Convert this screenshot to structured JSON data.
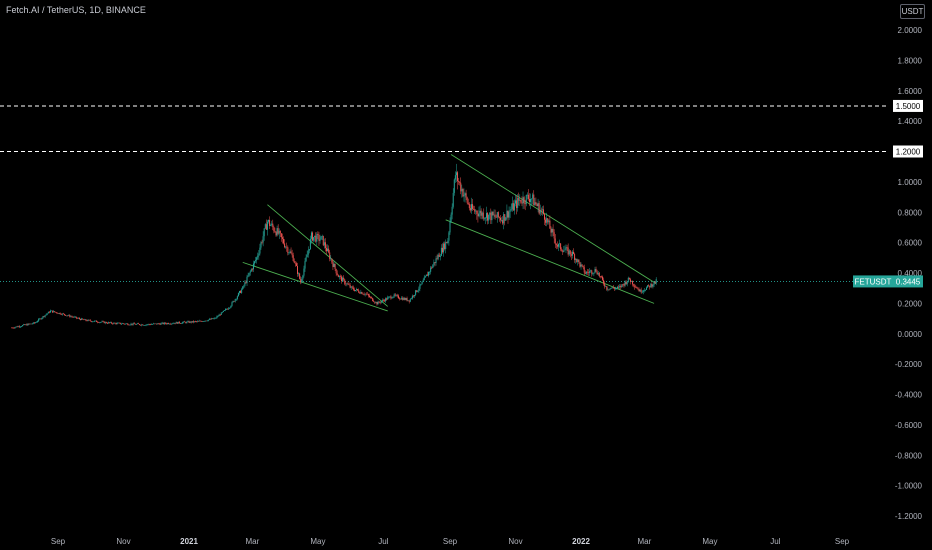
{
  "header": {
    "title": "Fetch.AI / TetherUS, 1D, BINANCE",
    "unit": "USDT"
  },
  "colors": {
    "background": "#000000",
    "up": "#26a69a",
    "down": "#ef5350",
    "trendline": "#4caf50",
    "current_price": "#26a69a",
    "text": "#b2b5be"
  },
  "chart_data": {
    "type": "candlestick",
    "symbol": "FETUSDT",
    "current_price": "0.3445",
    "y_ticks": [
      "2.0000",
      "1.8000",
      "1.6000",
      "1.4000",
      "1.2000",
      "1.0000",
      "0.8000",
      "0.6000",
      "0.4000",
      "0.2000",
      "0.0000",
      "-0.2000",
      "-0.4000",
      "-0.6000",
      "-0.8000",
      "-1.0000",
      "-1.2000"
    ],
    "y_tick_values": [
      2.0,
      1.8,
      1.6,
      1.4,
      1.2,
      1.0,
      0.8,
      0.6,
      0.4,
      0.2,
      0.0,
      -0.2,
      -0.4,
      -0.6,
      -0.8,
      -1.0,
      -1.2
    ],
    "ylim": [
      -1.28,
      2.15
    ],
    "x_ticks": [
      "Sep",
      "Nov",
      "2021",
      "Mar",
      "May",
      "Jul",
      "Sep",
      "Nov",
      "2022",
      "Mar",
      "May",
      "Jul",
      "Sep"
    ],
    "x_tick_dates": [
      "2020-09-01",
      "2020-11-01",
      "2021-01-01",
      "2021-03-01",
      "2021-05-01",
      "2021-07-01",
      "2021-09-01",
      "2021-11-01",
      "2022-01-01",
      "2022-03-01",
      "2022-05-01",
      "2022-07-01",
      "2022-09-01"
    ],
    "horizontal_levels": [
      {
        "value": 1.5,
        "label": "1.5000"
      },
      {
        "value": 1.2,
        "label": "1.2000"
      }
    ],
    "price_path": [
      [
        "2020-07-20",
        0.04
      ],
      [
        "2020-08-10",
        0.07
      ],
      [
        "2020-08-25",
        0.15
      ],
      [
        "2020-09-05",
        0.13
      ],
      [
        "2020-09-25",
        0.09
      ],
      [
        "2020-10-20",
        0.07
      ],
      [
        "2020-11-20",
        0.06
      ],
      [
        "2020-12-15",
        0.07
      ],
      [
        "2021-01-10",
        0.08
      ],
      [
        "2021-01-25",
        0.1
      ],
      [
        "2021-02-08",
        0.18
      ],
      [
        "2021-02-20",
        0.3
      ],
      [
        "2021-03-05",
        0.5
      ],
      [
        "2021-03-15",
        0.74
      ],
      [
        "2021-03-25",
        0.66
      ],
      [
        "2021-04-08",
        0.5
      ],
      [
        "2021-04-15",
        0.34
      ],
      [
        "2021-04-25",
        0.64
      ],
      [
        "2021-05-05",
        0.62
      ],
      [
        "2021-05-20",
        0.38
      ],
      [
        "2021-06-01",
        0.3
      ],
      [
        "2021-06-15",
        0.26
      ],
      [
        "2021-06-25",
        0.2
      ],
      [
        "2021-07-10",
        0.25
      ],
      [
        "2021-07-25",
        0.22
      ],
      [
        "2021-08-05",
        0.32
      ],
      [
        "2021-08-20",
        0.5
      ],
      [
        "2021-08-30",
        0.62
      ],
      [
        "2021-09-06",
        1.05
      ],
      [
        "2021-09-20",
        0.82
      ],
      [
        "2021-10-05",
        0.78
      ],
      [
        "2021-10-20",
        0.76
      ],
      [
        "2021-11-05",
        0.88
      ],
      [
        "2021-11-15",
        0.9
      ],
      [
        "2021-11-28",
        0.78
      ],
      [
        "2021-12-10",
        0.58
      ],
      [
        "2021-12-25",
        0.52
      ],
      [
        "2022-01-05",
        0.4
      ],
      [
        "2022-01-15",
        0.42
      ],
      [
        "2022-01-25",
        0.3
      ],
      [
        "2022-02-05",
        0.3
      ],
      [
        "2022-02-15",
        0.36
      ],
      [
        "2022-02-25",
        0.28
      ],
      [
        "2022-03-05",
        0.31
      ],
      [
        "2022-03-12",
        0.3445
      ]
    ],
    "trendlines": [
      [
        [
          "2021-03-15",
          0.85
        ],
        [
          "2021-07-05",
          0.18
        ]
      ],
      [
        [
          "2021-02-20",
          0.47
        ],
        [
          "2021-07-05",
          0.15
        ]
      ],
      [
        [
          "2021-09-02",
          1.18
        ],
        [
          "2022-03-12",
          0.33
        ]
      ],
      [
        [
          "2021-08-28",
          0.75
        ],
        [
          "2022-03-10",
          0.2
        ]
      ]
    ],
    "grid": false
  }
}
